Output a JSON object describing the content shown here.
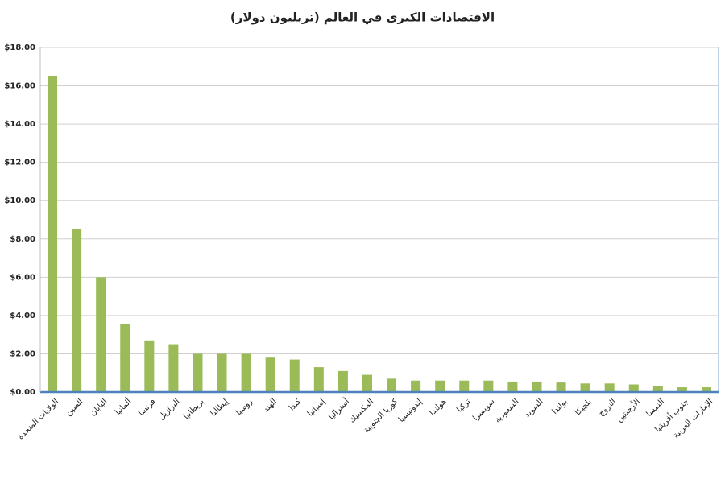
{
  "chart_data": {
    "type": "bar",
    "title": "الاقتصادات الكبرى في العالم (تريليون دولار)",
    "categories": [
      "الولايات المتحدة",
      "الصين",
      "اليابان",
      "ألمانيا",
      "فرنسا",
      "البرازيل",
      "بريطانيا",
      "إيطاليا",
      "روسيا",
      "الهند",
      "كندا",
      "إسبانيا",
      "أستراليا",
      "المكسيك",
      "كوريا الجنوبية",
      "إندونيسيا",
      "هولندا",
      "تركيا",
      "سويسرا",
      "السعودية",
      "السويد",
      "بولندا",
      "بلجيكا",
      "النروج",
      "الأرجنتين",
      "النمسا",
      "جنوب أفريقيا",
      "الإمارات العربية"
    ],
    "values": [
      16.5,
      8.5,
      6.0,
      3.55,
      2.7,
      2.5,
      2.0,
      2.0,
      2.0,
      1.8,
      1.7,
      1.3,
      1.1,
      0.9,
      0.7,
      0.6,
      0.6,
      0.6,
      0.6,
      0.55,
      0.55,
      0.5,
      0.45,
      0.45,
      0.4,
      0.3,
      0.25,
      0.25
    ],
    "color": "#9bbb59",
    "ylim": [
      0,
      18
    ],
    "yticks": [
      {
        "value": 0,
        "label": "$0.00"
      },
      {
        "value": 2,
        "label": "$2.00"
      },
      {
        "value": 4,
        "label": "$4.00"
      },
      {
        "value": 6,
        "label": "$6.00"
      },
      {
        "value": 8,
        "label": "$8.00"
      },
      {
        "value": 10,
        "label": "$10.00"
      },
      {
        "value": 12,
        "label": "$12.00"
      },
      {
        "value": 14,
        "label": "$14.00"
      },
      {
        "value": 16,
        "label": "$16.00"
      },
      {
        "value": 18,
        "label": "$18.00"
      }
    ],
    "grid": true
  }
}
